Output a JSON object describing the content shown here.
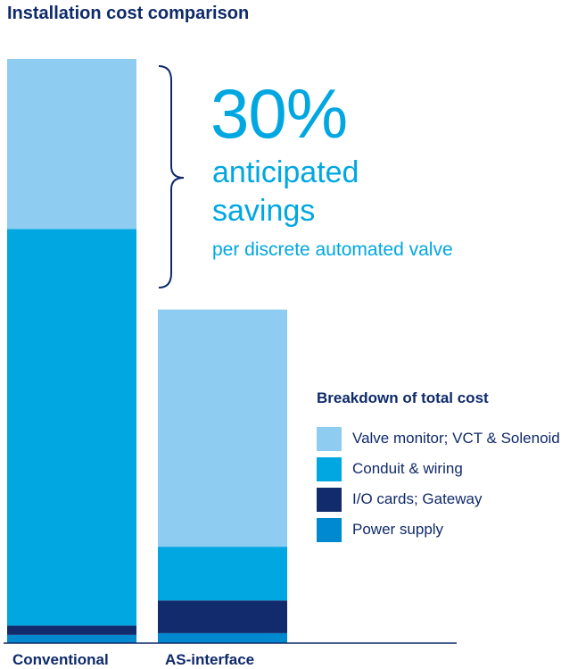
{
  "title": "Installation cost comparison",
  "callout": {
    "big_value": "30%",
    "line1": "anticipated",
    "line2": "savings",
    "line3": "per discrete automated valve"
  },
  "legend": {
    "title": "Breakdown of total cost",
    "items": [
      {
        "label": "Valve monitor; VCT & Solenoid",
        "color": "#8ecdf1"
      },
      {
        "label": "Conduit & wiring",
        "color": "#00a7e1"
      },
      {
        "label": "I/O cards; Gateway",
        "color": "#112b6d"
      },
      {
        "label": "Power supply",
        "color": "#0089cf"
      }
    ]
  },
  "chart_data": {
    "type": "bar",
    "stacked": true,
    "title": "Installation cost comparison",
    "categories": [
      "Conventional",
      "AS-interface"
    ],
    "series": [
      {
        "name": "Power supply",
        "color": "#0089cf",
        "values": [
          1.4,
          1.7
        ]
      },
      {
        "name": "I/O cards; Gateway",
        "color": "#112b6d",
        "values": [
          1.6,
          5.6
        ]
      },
      {
        "name": "Conduit & wiring",
        "color": "#00a7e1",
        "values": [
          67.9,
          9.2
        ]
      },
      {
        "name": "Valve monitor; VCT & Solenoid",
        "color": "#8ecdf1",
        "values": [
          29.1,
          40.6
        ]
      }
    ],
    "ylim": [
      0,
      100
    ],
    "grid": false,
    "legend_position": "right"
  }
}
